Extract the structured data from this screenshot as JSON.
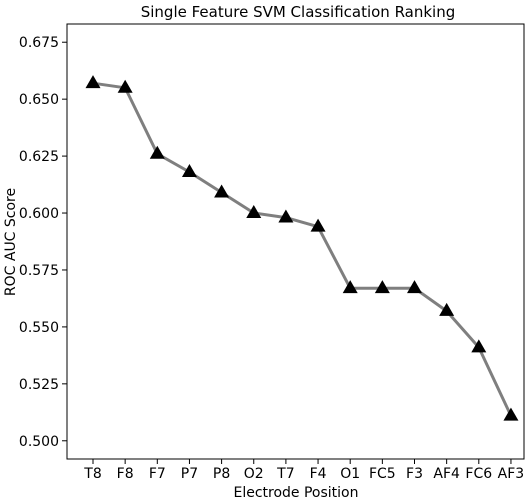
{
  "chart_data": {
    "type": "line",
    "title": "Single Feature SVM Classification Ranking",
    "xlabel": "Electrode Position",
    "ylabel": "ROC AUC Score",
    "categories": [
      "T8",
      "F8",
      "F7",
      "P7",
      "P8",
      "O2",
      "T7",
      "F4",
      "O1",
      "FC5",
      "F3",
      "AF4",
      "FC6",
      "AF3"
    ],
    "series": [
      {
        "values": [
          0.657,
          0.655,
          0.626,
          0.618,
          0.609,
          0.6,
          0.598,
          0.594,
          0.567,
          0.567,
          0.567,
          0.557,
          0.541,
          0.511
        ],
        "line_color": "#7f7f7f",
        "marker": "triangle",
        "marker_color": "#000000"
      }
    ],
    "ylim": [
      0.492,
      0.683
    ],
    "yticks": [
      "0.500",
      "0.525",
      "0.550",
      "0.575",
      "0.600",
      "0.625",
      "0.650",
      "0.675"
    ],
    "grid": false,
    "legend": "none"
  }
}
